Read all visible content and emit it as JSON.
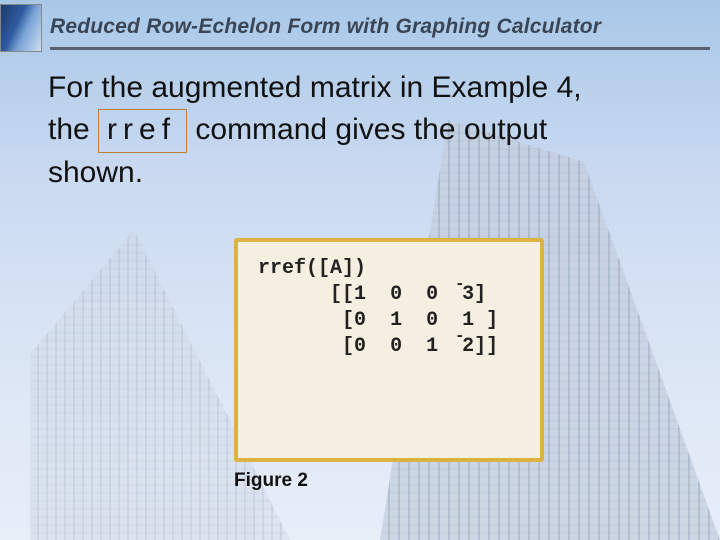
{
  "header": {
    "title": "Reduced Row-Echelon Form with Graphing Calculator"
  },
  "body": {
    "line1_prefix": "For the augmented matrix in Example 4,",
    "line2_prefix": "the ",
    "command_text": "rref",
    "line2_suffix": " command gives the output",
    "line3": "shown."
  },
  "figure": {
    "caption": "Figure 2",
    "panel": {
      "background_color": "#f4efe0",
      "border_color": "#dcb340",
      "font_family": "Courier New",
      "font_size_pt": 15,
      "text_color": "#222222"
    },
    "calc": {
      "command_line": "rref([A])",
      "matrix_open": "[[",
      "matrix_row_open": "[",
      "matrix_row_close": "]",
      "matrix_close": "]]",
      "rows": [
        {
          "a": "1",
          "b": "0",
          "c": "0",
          "d": "3",
          "d_neg": true
        },
        {
          "a": "0",
          "b": "1",
          "c": "0",
          "d": "1",
          "d_neg": false
        },
        {
          "a": "0",
          "b": "0",
          "c": "1",
          "d": "2",
          "d_neg": true
        }
      ]
    }
  },
  "colors": {
    "header_underline": "#556070",
    "header_text": "#3a4656",
    "body_text": "#111111",
    "cmd_border": "#c08030",
    "sky_top": "#a8c8e8",
    "sky_bottom": "#e8eef8"
  }
}
